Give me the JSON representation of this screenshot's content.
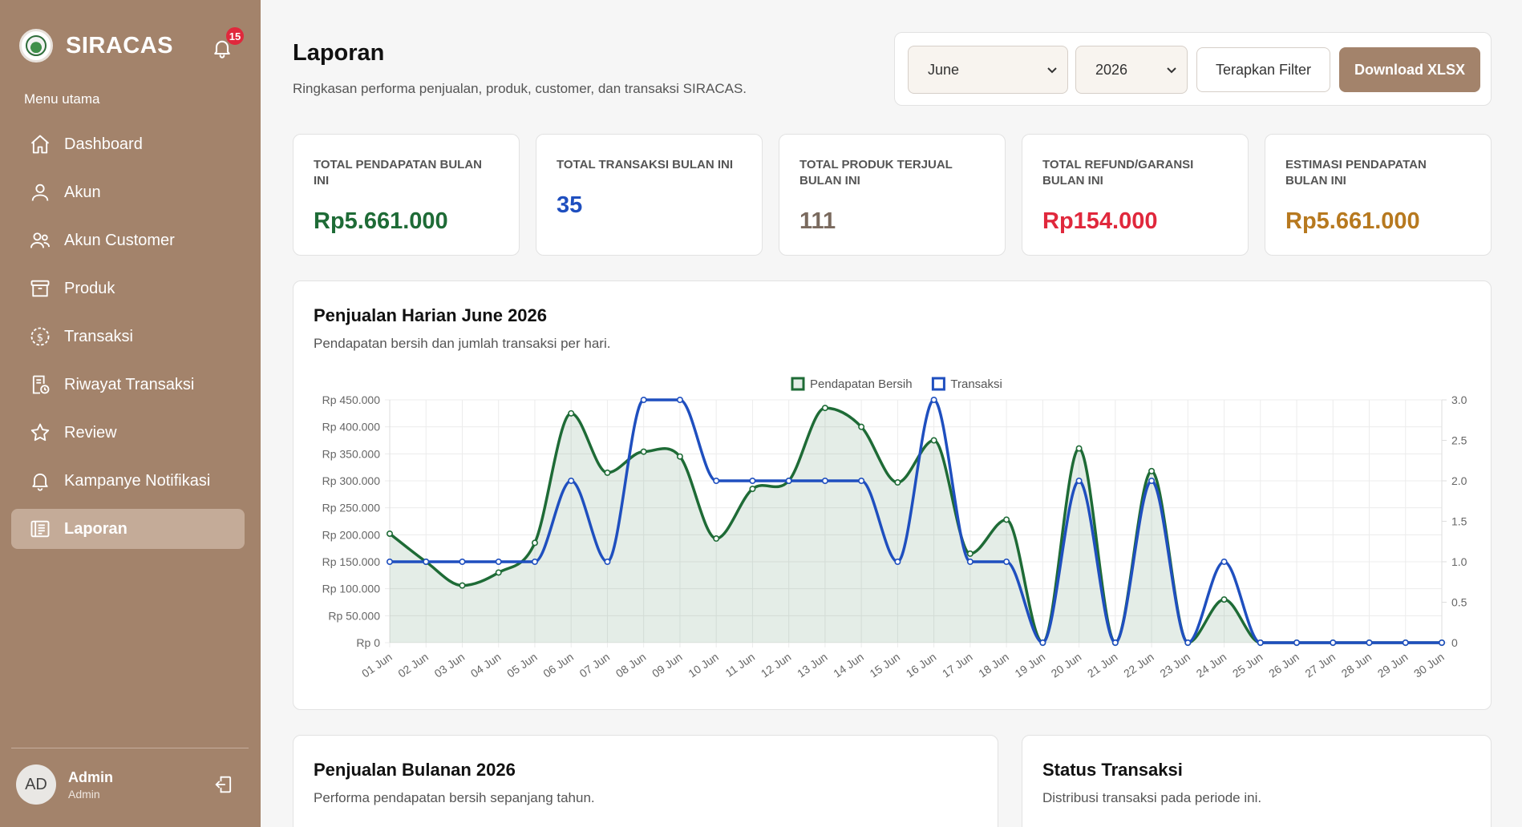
{
  "sidebar": {
    "brand": "SIRACAS",
    "notification_count": "15",
    "menu_caption": "Menu utama",
    "items": [
      {
        "label": "Dashboard",
        "icon": "home-icon"
      },
      {
        "label": "Akun",
        "icon": "user-icon"
      },
      {
        "label": "Akun Customer",
        "icon": "users-icon"
      },
      {
        "label": "Produk",
        "icon": "box-icon"
      },
      {
        "label": "Transaksi",
        "icon": "dollar-circle-icon"
      },
      {
        "label": "Riwayat Transaksi",
        "icon": "receipt-clock-icon"
      },
      {
        "label": "Review",
        "icon": "star-icon"
      },
      {
        "label": "Kampanye Notifikasi",
        "icon": "bell-icon"
      },
      {
        "label": "Laporan",
        "icon": "report-icon"
      }
    ],
    "active_item": "Laporan",
    "user": {
      "initials": "AD",
      "name": "Admin",
      "role": "Admin"
    }
  },
  "header": {
    "title": "Laporan",
    "subtitle": "Ringkasan performa penjualan, produk, customer, dan transaksi SIRACAS."
  },
  "filter": {
    "month": "June",
    "year": "2026",
    "apply_label": "Terapkan Filter",
    "download_label": "Download XLSX"
  },
  "stats": [
    {
      "label": "Total Pendapatan Bulan Ini",
      "value": "Rp5.661.000",
      "color": "#1e6b36"
    },
    {
      "label": "Total Transaksi Bulan Ini",
      "value": "35",
      "color": "#1f4fbf"
    },
    {
      "label": "Total Produk Terjual Bulan Ini",
      "value": "111",
      "color": "#7a6a5e"
    },
    {
      "label": "Total Refund/Garansi Bulan Ini",
      "value": "Rp154.000",
      "color": "#e0283c"
    },
    {
      "label": "Estimasi Pendapatan Bulan Ini",
      "value": "Rp5.661.000",
      "color": "#b7791f"
    }
  ],
  "daily_card": {
    "title": "Penjualan Harian June 2026",
    "subtitle": "Pendapatan bersih dan jumlah transaksi per hari."
  },
  "monthly_card": {
    "title": "Penjualan Bulanan 2026",
    "subtitle": "Performa pendapatan bersih sepanjang tahun."
  },
  "status_card": {
    "title": "Status Transaksi",
    "subtitle": "Distribusi transaksi pada periode ini."
  },
  "chart_data": {
    "type": "line",
    "categories": [
      "01 Jun",
      "02 Jun",
      "03 Jun",
      "04 Jun",
      "05 Jun",
      "06 Jun",
      "07 Jun",
      "08 Jun",
      "09 Jun",
      "10 Jun",
      "11 Jun",
      "12 Jun",
      "13 Jun",
      "14 Jun",
      "15 Jun",
      "16 Jun",
      "17 Jun",
      "18 Jun",
      "19 Jun",
      "20 Jun",
      "21 Jun",
      "22 Jun",
      "23 Jun",
      "24 Jun",
      "25 Jun",
      "26 Jun",
      "27 Jun",
      "28 Jun",
      "29 Jun",
      "30 Jun"
    ],
    "series": [
      {
        "name": "Pendapatan Bersih",
        "axis": "left",
        "color": "#1e6b36",
        "fill": true,
        "values": [
          202000,
          150000,
          106000,
          130000,
          185000,
          425000,
          315000,
          354000,
          345000,
          193000,
          285000,
          300000,
          435000,
          400000,
          297000,
          375000,
          165000,
          228000,
          0,
          360000,
          0,
          318000,
          0,
          80000,
          0,
          0,
          0,
          0,
          0,
          0
        ]
      },
      {
        "name": "Transaksi",
        "axis": "right",
        "color": "#1f4fbf",
        "fill": false,
        "values": [
          1,
          1,
          1,
          1,
          1,
          2,
          1,
          3,
          3,
          2,
          2,
          2,
          2,
          2,
          1,
          3,
          1,
          1,
          0,
          2,
          0,
          2,
          0,
          1,
          0,
          0,
          0,
          0,
          0,
          0
        ]
      }
    ],
    "y_left": {
      "min": 0,
      "max": 450000,
      "ticks": [
        "Rp 0",
        "Rp 50.000",
        "Rp 100.000",
        "Rp 150.000",
        "Rp 200.000",
        "Rp 250.000",
        "Rp 300.000",
        "Rp 350.000",
        "Rp 400.000",
        "Rp 450.000"
      ]
    },
    "y_right": {
      "min": 0,
      "max": 3,
      "ticks": [
        "0",
        "0.5",
        "1.0",
        "1.5",
        "2.0",
        "2.5",
        "3.0"
      ]
    },
    "legend": "top-center",
    "grid": true
  }
}
